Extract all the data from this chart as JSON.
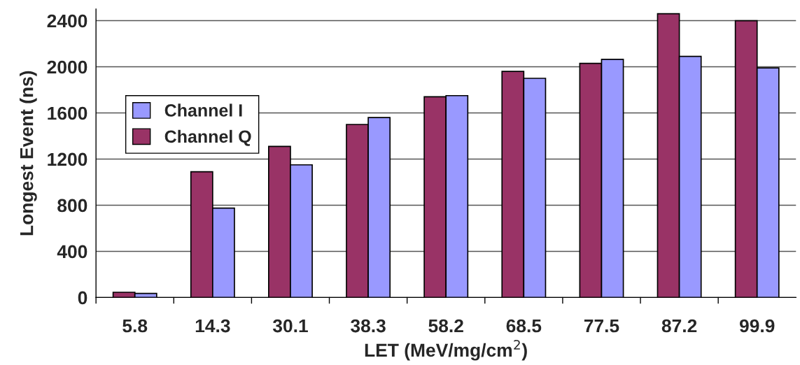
{
  "chart_data": {
    "type": "bar",
    "xlabel": "LET (MeV/mg/cm$^{2}$)",
    "ylabel": "Longest Event (ns)",
    "categories": [
      "5.8",
      "14.3",
      "30.1",
      "38.3",
      "58.2",
      "68.5",
      "77.5",
      "87.2",
      "99.9"
    ],
    "series": [
      {
        "name": "Channel Q",
        "color": "#993366",
        "values": [
          45,
          1090,
          1310,
          1500,
          1740,
          1960,
          2030,
          2460,
          2400
        ]
      },
      {
        "name": "Channel I",
        "color": "#9999ff",
        "values": [
          35,
          775,
          1150,
          1560,
          1750,
          1900,
          2065,
          2090,
          1990
        ]
      }
    ],
    "ylim": [
      0,
      2500
    ],
    "yticks": [
      0,
      400,
      800,
      1200,
      1600,
      2000,
      2400
    ],
    "grid": "y",
    "legend": "left"
  }
}
